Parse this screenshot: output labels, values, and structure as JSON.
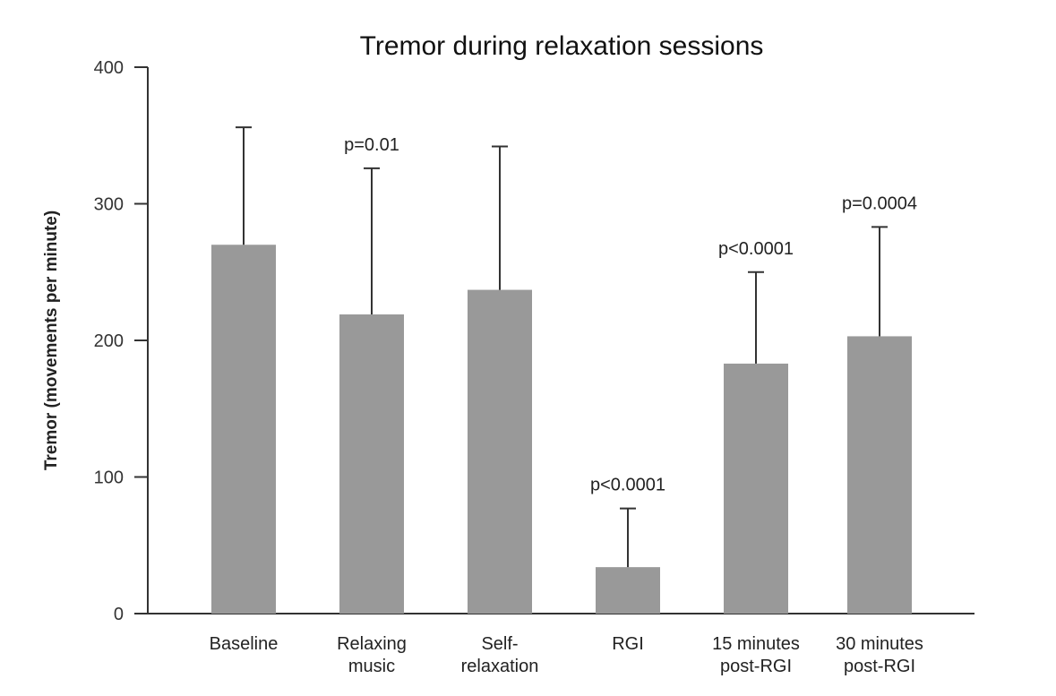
{
  "chart_data": {
    "type": "bar",
    "title": "Tremor during relaxation sessions",
    "xlabel": "",
    "ylabel": "Tremor (movements per minute)",
    "ylim": [
      0,
      400
    ],
    "yticks": [
      0,
      100,
      200,
      300,
      400
    ],
    "grid": false,
    "categories": [
      [
        "Baseline"
      ],
      [
        "Relaxing",
        "music"
      ],
      [
        "Self-",
        "relaxation"
      ],
      [
        "RGI"
      ],
      [
        "15 minutes",
        "post-RGI"
      ],
      [
        "30 minutes",
        "post-RGI"
      ]
    ],
    "values": [
      270,
      219,
      237,
      34,
      183,
      203
    ],
    "error_upper": [
      356,
      326,
      342,
      77,
      250,
      283
    ],
    "annotations": [
      "",
      "p=0.01",
      "",
      "p<0.0001",
      "p<0.0001",
      "p=0.0004"
    ],
    "bar_color": "#999999"
  }
}
